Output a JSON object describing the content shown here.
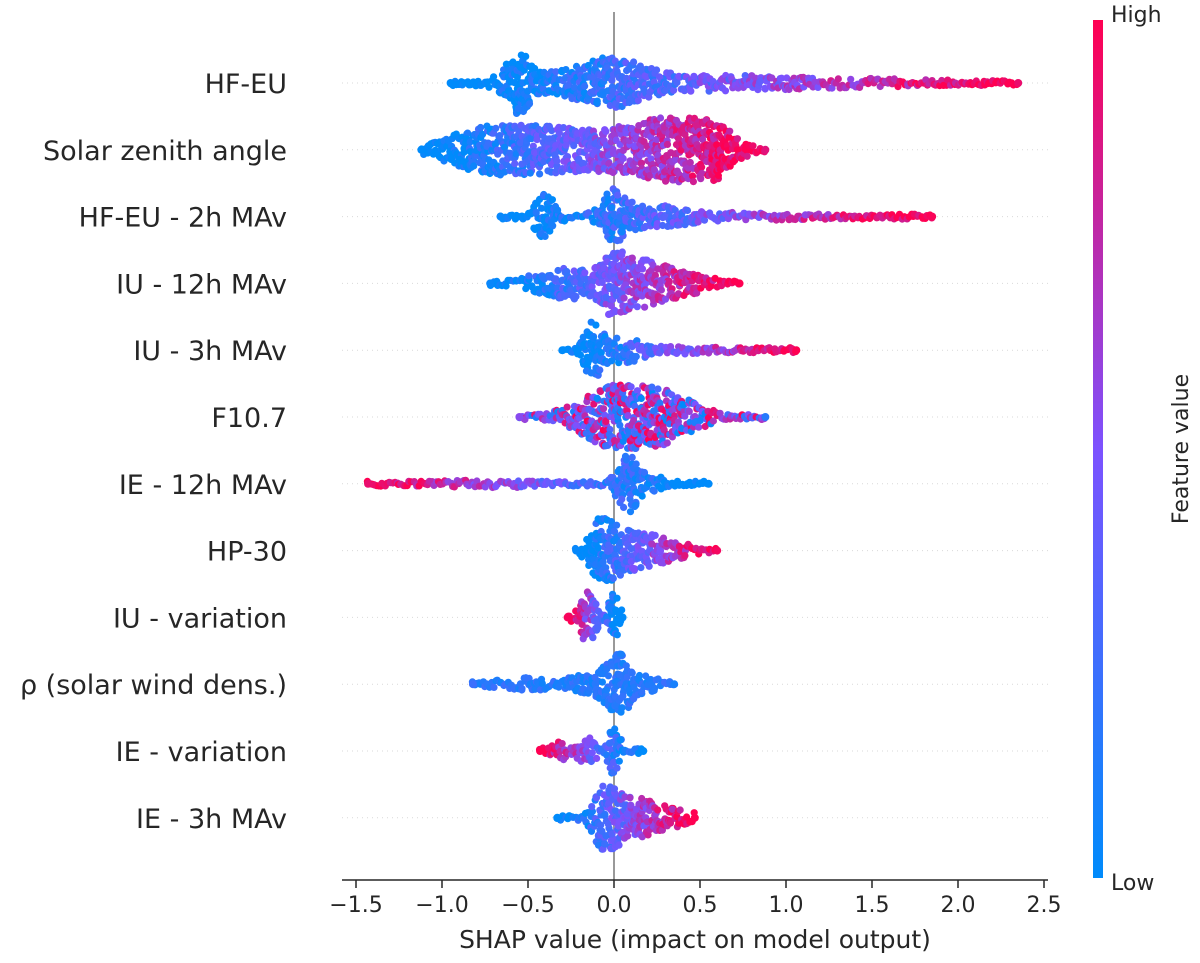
{
  "chart_data": {
    "type": "scatter",
    "subtype": "shap-beeswarm",
    "title": "",
    "xlabel": "SHAP value (impact on model output)",
    "xlim": [
      -1.6,
      2.55
    ],
    "xticks": [
      -1.5,
      -1.0,
      -0.5,
      0.0,
      0.5,
      1.0,
      1.5,
      2.0,
      2.5
    ],
    "xtick_labels": [
      "−1.5",
      "−1.0",
      "−0.5",
      "0.0",
      "0.5",
      "1.0",
      "1.5",
      "2.0",
      "2.5"
    ],
    "zero_line": 0.0,
    "grid": false,
    "colorbar": {
      "label": "Feature value",
      "high_label": "High",
      "low_label": "Low",
      "low_color": "#008bfb",
      "high_color": "#ff0052",
      "placement": "right"
    },
    "features": [
      {
        "name": "HF-EU",
        "min": -0.95,
        "max": 2.35,
        "clusters": [
          [
            -0.56,
            0.06,
            0.75
          ],
          [
            -0.25,
            0.35,
            0.3
          ],
          [
            0.0,
            0.15,
            0.45
          ],
          [
            0.5,
            0.5,
            0.2
          ],
          [
            1.5,
            0.6,
            0.12
          ]
        ],
        "color_trend": "low-to-high"
      },
      {
        "name": "Solar zenith angle",
        "min": -1.12,
        "max": 0.88,
        "clusters": [
          [
            -0.7,
            0.25,
            0.7
          ],
          [
            -0.2,
            0.25,
            0.55
          ],
          [
            0.25,
            0.2,
            0.65
          ],
          [
            0.5,
            0.15,
            1.0
          ]
        ],
        "color_trend": "low-to-high"
      },
      {
        "name": "HF-EU - 2h MAv",
        "min": -0.66,
        "max": 1.85,
        "clusters": [
          [
            -0.4,
            0.06,
            0.7
          ],
          [
            0.0,
            0.06,
            0.7
          ],
          [
            0.2,
            0.2,
            0.3
          ],
          [
            0.8,
            0.5,
            0.12
          ]
        ],
        "color_trend": "low-to-high"
      },
      {
        "name": "IU - 12h MAv",
        "min": -0.72,
        "max": 0.73,
        "clusters": [
          [
            -0.25,
            0.2,
            0.5
          ],
          [
            0.0,
            0.05,
            0.8
          ],
          [
            0.15,
            0.12,
            0.6
          ],
          [
            0.4,
            0.15,
            0.35
          ]
        ],
        "color_trend": "low-to-high"
      },
      {
        "name": "IU - 3h MAv",
        "min": -0.3,
        "max": 1.06,
        "clusters": [
          [
            -0.13,
            0.05,
            0.8
          ],
          [
            0.05,
            0.1,
            0.35
          ],
          [
            0.4,
            0.3,
            0.12
          ]
        ],
        "color_trend": "low-to-high"
      },
      {
        "name": "F10.7",
        "min": -0.55,
        "max": 0.88,
        "clusters": [
          [
            0.05,
            0.22,
            1.0
          ],
          [
            0.35,
            0.18,
            0.35
          ]
        ],
        "color_trend": "mixed"
      },
      {
        "name": "IE - 12h MAv",
        "min": -1.43,
        "max": 0.55,
        "clusters": [
          [
            -0.7,
            0.4,
            0.12
          ],
          [
            0.08,
            0.06,
            0.8
          ],
          [
            0.25,
            0.12,
            0.2
          ]
        ],
        "color_trend": "high-to-low"
      },
      {
        "name": "HP-30",
        "min": -0.22,
        "max": 0.6,
        "clusters": [
          [
            -0.08,
            0.06,
            0.8
          ],
          [
            0.05,
            0.1,
            0.5
          ],
          [
            0.25,
            0.15,
            0.4
          ]
        ],
        "color_trend": "low-to-high"
      },
      {
        "name": "IU - variation",
        "min": -0.27,
        "max": 0.05,
        "clusters": [
          [
            -0.15,
            0.05,
            0.8
          ],
          [
            0.0,
            0.03,
            0.75
          ]
        ],
        "color_trend": "high-to-low"
      },
      {
        "name": "ρ (solar wind dens.)",
        "min": -0.82,
        "max": 0.35,
        "clusters": [
          [
            -0.5,
            0.2,
            0.2
          ],
          [
            -0.1,
            0.1,
            0.4
          ],
          [
            0.03,
            0.05,
            0.7
          ],
          [
            0.15,
            0.1,
            0.3
          ]
        ],
        "color_trend": "low"
      },
      {
        "name": "IE - variation",
        "min": -0.43,
        "max": 0.17,
        "clusters": [
          [
            -0.3,
            0.08,
            0.3
          ],
          [
            -0.15,
            0.04,
            0.4
          ],
          [
            0.0,
            0.03,
            0.8
          ]
        ],
        "color_trend": "high-to-low"
      },
      {
        "name": "IE - 3h MAv",
        "min": -0.33,
        "max": 0.47,
        "clusters": [
          [
            -0.05,
            0.06,
            1.0
          ],
          [
            0.1,
            0.1,
            0.5
          ],
          [
            0.3,
            0.15,
            0.3
          ]
        ],
        "color_trend": "low-to-high"
      }
    ]
  }
}
